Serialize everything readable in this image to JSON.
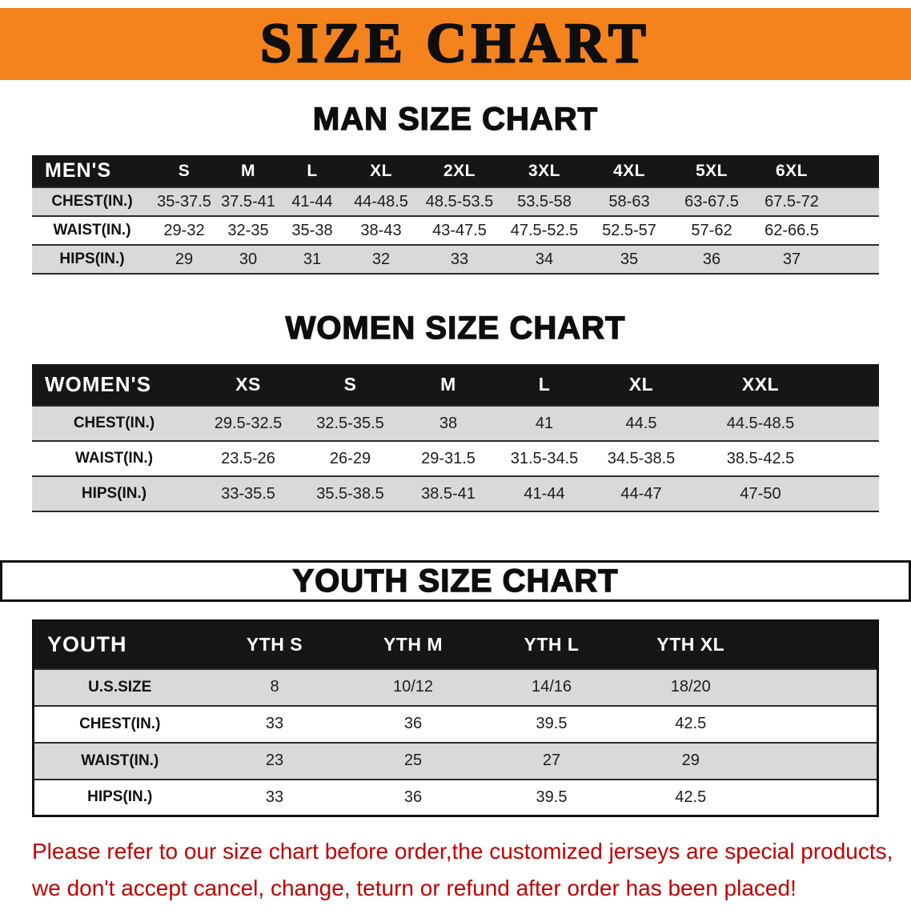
{
  "banner": {
    "title": "SIZE CHART",
    "bg_color": "#F5831D",
    "text_color": "#0E0E0E"
  },
  "sections": {
    "men": {
      "heading": "MAN SIZE CHART",
      "table": {
        "label": "MEN'S",
        "columns": [
          "S",
          "M",
          "L",
          "XL",
          "2XL",
          "3XL",
          "4XL",
          "5XL",
          "6XL"
        ],
        "rows": [
          {
            "label": "CHEST(IN.)",
            "values": [
              "35-37.5",
              "37.5-41",
              "41-44",
              "44-48.5",
              "48.5-53.5",
              "53.5-58",
              "58-63",
              "63-67.5",
              "67.5-72"
            ]
          },
          {
            "label": "WAIST(IN.)",
            "values": [
              "29-32",
              "32-35",
              "35-38",
              "38-43",
              "43-47.5",
              "47.5-52.5",
              "52.5-57",
              "57-62",
              "62-66.5"
            ]
          },
          {
            "label": "HIPS(IN.)",
            "values": [
              "29",
              "30",
              "31",
              "32",
              "33",
              "34",
              "35",
              "36",
              "37"
            ]
          }
        ]
      }
    },
    "women": {
      "heading": "WOMEN SIZE CHART",
      "table": {
        "label": "WOMEN'S",
        "columns": [
          "XS",
          "S",
          "M",
          "L",
          "XL",
          "XXL"
        ],
        "rows": [
          {
            "label": "CHEST(IN.)",
            "values": [
              "29.5-32.5",
              "32.5-35.5",
              "38",
              "41",
              "44.5",
              "44.5-48.5"
            ]
          },
          {
            "label": "WAIST(IN.)",
            "values": [
              "23.5-26",
              "26-29",
              "29-31.5",
              "31.5-34.5",
              "34.5-38.5",
              "38.5-42.5"
            ]
          },
          {
            "label": "HIPS(IN.)",
            "values": [
              "33-35.5",
              "35.5-38.5",
              "38.5-41",
              "41-44",
              "44-47",
              "47-50"
            ]
          }
        ]
      }
    },
    "youth": {
      "heading": "YOUTH SIZE CHART",
      "table": {
        "label": "YOUTH",
        "columns": [
          "YTH S",
          "YTH M",
          "YTH L",
          "YTH XL"
        ],
        "rows": [
          {
            "label": "U.S.SIZE",
            "values": [
              "8",
              "10/12",
              "14/16",
              "18/20"
            ]
          },
          {
            "label": "CHEST(IN.)",
            "values": [
              "33",
              "36",
              "39.5",
              "42.5"
            ]
          },
          {
            "label": "WAIST(IN.)",
            "values": [
              "23",
              "25",
              "27",
              "29"
            ]
          },
          {
            "label": "HIPS(IN.)",
            "values": [
              "33",
              "36",
              "39.5",
              "42.5"
            ]
          }
        ]
      }
    }
  },
  "footer": {
    "lines": [
      "Please refer to our size chart before order,the customized jerseys are special products,",
      "we don't accept cancel, change, teturn or refund after order has been placed!"
    ],
    "text_color": "#C00000"
  },
  "colors": {
    "header_black": "#161616",
    "stripe_gray": "#D9D9D9",
    "banner_orange": "#F5831D"
  }
}
